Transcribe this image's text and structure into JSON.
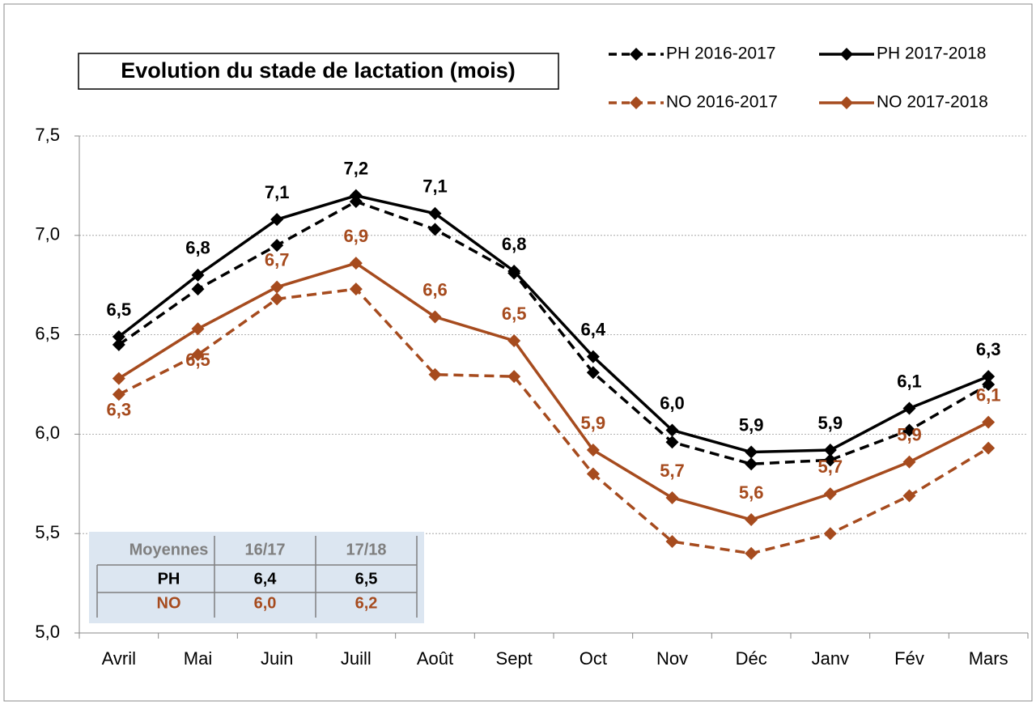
{
  "chart_data": {
    "type": "line",
    "title": "Evolution du stade de lactation (mois)",
    "categories": [
      "Avril",
      "Mai",
      "Juin",
      "Juill",
      "Août",
      "Sept",
      "Oct",
      "Nov",
      "Déc",
      "Janv",
      "Fév",
      "Mars"
    ],
    "series": [
      {
        "name": "PH 2016-2017",
        "color": "#000000",
        "dashed": true,
        "values": [
          6.45,
          6.73,
          6.95,
          7.17,
          7.03,
          6.81,
          6.31,
          5.96,
          5.85,
          5.87,
          6.02,
          6.25
        ]
      },
      {
        "name": "PH 2017-2018",
        "color": "#000000",
        "dashed": false,
        "values": [
          6.49,
          6.8,
          7.08,
          7.2,
          7.11,
          6.82,
          6.39,
          6.02,
          5.91,
          5.92,
          6.13,
          6.29
        ],
        "value_labels": [
          "6,5",
          "6,8",
          "7,1",
          "7,2",
          "7,1",
          "6,8",
          "6,4",
          "6,0",
          "5,9",
          "5,9",
          "6,1",
          "6,3"
        ]
      },
      {
        "name": "NO 2016-2017",
        "color": "#a64b1e",
        "dashed": true,
        "values": [
          6.2,
          6.4,
          6.68,
          6.73,
          6.3,
          6.29,
          5.8,
          5.46,
          5.4,
          5.5,
          5.69,
          5.93
        ]
      },
      {
        "name": "NO 2017-2018",
        "color": "#a64b1e",
        "dashed": false,
        "values": [
          6.28,
          6.53,
          6.74,
          6.86,
          6.59,
          6.47,
          5.92,
          5.68,
          5.57,
          5.7,
          5.86,
          6.06
        ],
        "value_labels": [
          "6,3",
          "6,5",
          "6,7",
          "6,9",
          "6,6",
          "6,5",
          "5,9",
          "5,7",
          "5,6",
          "5,7",
          "5,9",
          "6,1"
        ]
      }
    ],
    "ylim": [
      5.0,
      7.5
    ],
    "yticks": [
      {
        "value": 5.0,
        "label": "5,0"
      },
      {
        "value": 5.5,
        "label": "5,5"
      },
      {
        "value": 6.0,
        "label": "6,0"
      },
      {
        "value": 6.5,
        "label": "6,5"
      },
      {
        "value": 7.0,
        "label": "7,0"
      },
      {
        "value": 7.5,
        "label": "7,5"
      }
    ],
    "grid": true,
    "legend": "top-right"
  },
  "table": {
    "header": [
      "Moyennes",
      "16/17",
      "17/18"
    ],
    "rows": [
      [
        "PH",
        "6,4",
        "6,5"
      ],
      [
        "NO",
        "6,0",
        "6,2"
      ]
    ]
  }
}
